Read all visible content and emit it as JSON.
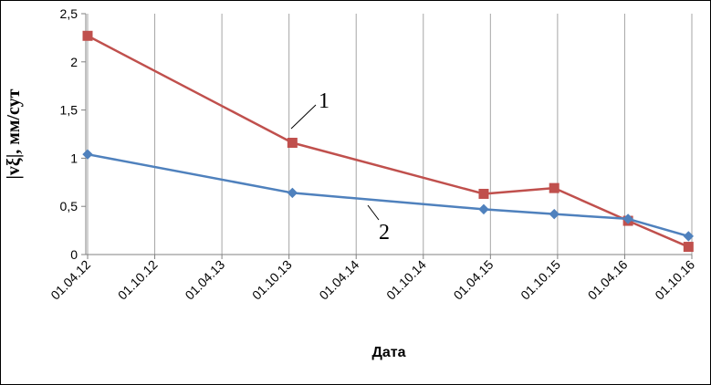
{
  "chart_data": {
    "type": "line",
    "xlabel": "Дата",
    "ylabel": "|vξ|, мм/сут",
    "ylim": [
      0,
      2.5
    ],
    "yticks": [
      "0",
      "0,5",
      "1",
      "1,5",
      "2",
      "2,5"
    ],
    "ytick_values": [
      0,
      0.5,
      1,
      1.5,
      2,
      2.5
    ],
    "xticks": [
      "01.04.12",
      "01.10.12",
      "01.04.13",
      "01.10.13",
      "01.04.14",
      "01.10.14",
      "01.04.15",
      "01.10.15",
      "01.04.16",
      "01.10.16"
    ],
    "x_range_ticks": [
      0,
      9
    ],
    "grid": {
      "vertical": true,
      "horizontal": false
    },
    "series": [
      {
        "name": "1",
        "color": "#C0504D",
        "marker": "square",
        "x": [
          0.0,
          3.05,
          5.9,
          6.95,
          8.05,
          8.95
        ],
        "y": [
          2.27,
          1.16,
          0.63,
          0.69,
          0.35,
          0.08
        ]
      },
      {
        "name": "2",
        "color": "#4F81BD",
        "marker": "diamond",
        "x": [
          0.0,
          3.05,
          5.9,
          6.95,
          8.05,
          8.95
        ],
        "y": [
          1.04,
          0.64,
          0.47,
          0.42,
          0.37,
          0.19
        ]
      }
    ],
    "annotations": [
      {
        "text": "1",
        "series": 0
      },
      {
        "text": "2",
        "series": 1
      }
    ]
  }
}
